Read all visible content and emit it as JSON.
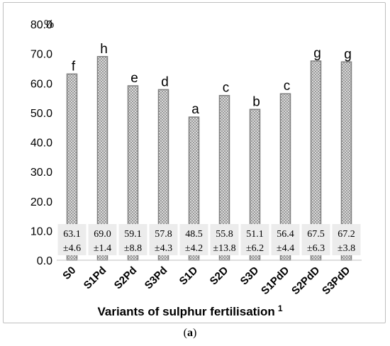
{
  "chart_data": {
    "type": "bar",
    "unit_label": "%",
    "xlabel": "Variants of sulphur fertilisation",
    "xlabel_superscript": "1",
    "ylabel": "",
    "ylim": [
      0,
      80
    ],
    "yticks": [
      "0.0",
      "10.0",
      "20.0",
      "30.0",
      "40.0",
      "50.0",
      "60.0",
      "70.0",
      "80.0"
    ],
    "categories": [
      "S0",
      "S1Pd",
      "S2Pd",
      "S3Pd",
      "S1D",
      "S2D",
      "S3D",
      "S1PdD",
      "S2PdD",
      "S3PdD"
    ],
    "values": [
      63.1,
      69.0,
      59.1,
      57.8,
      48.5,
      55.8,
      51.1,
      56.4,
      67.5,
      67.2
    ],
    "value_labels": [
      "63.1",
      "69.0",
      "59.1",
      "57.8",
      "48.5",
      "55.8",
      "51.1",
      "56.4",
      "67.5",
      "67.2"
    ],
    "sd_labels": [
      "±4.6",
      "±1.4",
      "±8.8",
      "±4.3",
      "±4.2",
      "±13.8",
      "±6.2",
      "±4.4",
      "±6.3",
      "±3.8"
    ],
    "letters": [
      "f",
      "h",
      "e",
      "d",
      "a",
      "c",
      "b",
      "c",
      "g",
      "g"
    ],
    "grid": false,
    "legend": "none",
    "bar_color": "#c8c8c8",
    "bar_edge_color": "#7f7f7f"
  },
  "caption": {
    "open": "(",
    "letter": "a",
    "close": ")"
  }
}
